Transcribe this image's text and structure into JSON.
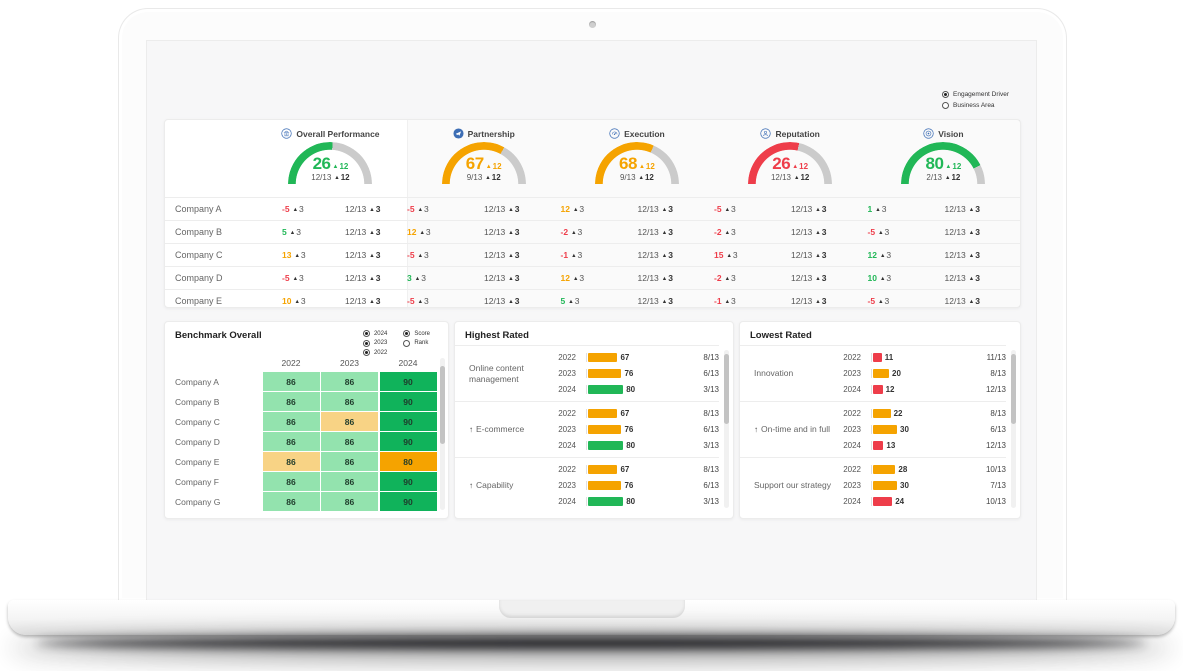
{
  "view_toggle": {
    "options": [
      {
        "label": "Engagement Driver",
        "selected": true
      },
      {
        "label": "Business Area",
        "selected": false
      }
    ]
  },
  "colors": {
    "green": "#21b757",
    "orange": "#f5a300",
    "red": "#ee3d4a",
    "track": "#cbcbcb",
    "icon_blue": "#3d6eb5",
    "light_green": "#93e3ae",
    "dark_green": "#10b35b",
    "light_orange": "#f8d385",
    "dark_orange": "#f5a300"
  },
  "kpi_sections": [
    {
      "title": "Overall Performance",
      "icon": "bank-icon",
      "value": 26,
      "delta": 12,
      "rank": "12/13",
      "rank_delta": 12,
      "tone": "green",
      "fill_pct": 52
    },
    {
      "title": "Partnership",
      "icon": "paper-plane-icon",
      "value": 67,
      "delta": 12,
      "rank": "9/13",
      "rank_delta": 12,
      "tone": "orange",
      "fill_pct": 66
    },
    {
      "title": "Execution",
      "icon": "gauge-icon",
      "value": 68,
      "delta": 12,
      "rank": "9/13",
      "rank_delta": 12,
      "tone": "orange",
      "fill_pct": 63
    },
    {
      "title": "Reputation",
      "icon": "person-icon",
      "value": 26,
      "delta": 12,
      "rank": "12/13",
      "rank_delta": 12,
      "tone": "red",
      "fill_pct": 57
    },
    {
      "title": "Vision",
      "icon": "eye-icon",
      "value": 80,
      "delta": 12,
      "rank": "2/13",
      "rank_delta": 12,
      "tone": "green",
      "fill_pct": 85
    }
  ],
  "company_table": {
    "cell_delta": 3,
    "cell_rank": "12/13",
    "cell_rank_delta": 3,
    "rows": [
      {
        "name": "Company A",
        "cells": [
          {
            "v": -5,
            "tone": "red"
          },
          {
            "v": -5,
            "tone": "red"
          },
          {
            "v": 12,
            "tone": "orange"
          },
          {
            "v": -5,
            "tone": "red"
          },
          {
            "v": 1,
            "tone": "green"
          }
        ]
      },
      {
        "name": "Company B",
        "cells": [
          {
            "v": 5,
            "tone": "green"
          },
          {
            "v": 12,
            "tone": "orange"
          },
          {
            "v": -2,
            "tone": "red"
          },
          {
            "v": -2,
            "tone": "red"
          },
          {
            "v": -5,
            "tone": "red"
          }
        ]
      },
      {
        "name": "Company C",
        "cells": [
          {
            "v": 13,
            "tone": "orange"
          },
          {
            "v": -5,
            "tone": "red"
          },
          {
            "v": -1,
            "tone": "red"
          },
          {
            "v": 15,
            "tone": "red"
          },
          {
            "v": 12,
            "tone": "green"
          }
        ]
      },
      {
        "name": "Company D",
        "cells": [
          {
            "v": -5,
            "tone": "red"
          },
          {
            "v": 3,
            "tone": "green"
          },
          {
            "v": 12,
            "tone": "orange"
          },
          {
            "v": -2,
            "tone": "red"
          },
          {
            "v": 10,
            "tone": "green"
          }
        ]
      },
      {
        "name": "Company E",
        "cells": [
          {
            "v": 10,
            "tone": "orange"
          },
          {
            "v": -5,
            "tone": "red"
          },
          {
            "v": 5,
            "tone": "green"
          },
          {
            "v": -1,
            "tone": "red"
          },
          {
            "v": -5,
            "tone": "red"
          }
        ]
      }
    ]
  },
  "benchmark": {
    "title": "Benchmark Overall",
    "year_filters": [
      {
        "label": "2024",
        "selected": true
      },
      {
        "label": "2023",
        "selected": true
      },
      {
        "label": "2022",
        "selected": true
      }
    ],
    "mode_filters": [
      {
        "label": "Score",
        "selected": true
      },
      {
        "label": "Rank",
        "selected": false
      }
    ],
    "years": [
      "2022",
      "2023",
      "2024"
    ],
    "rows": [
      {
        "name": "Company A",
        "cells": [
          {
            "v": 86,
            "tone": "light_green"
          },
          {
            "v": 86,
            "tone": "light_green"
          },
          {
            "v": 90,
            "tone": "dark_green"
          }
        ]
      },
      {
        "name": "Company B",
        "cells": [
          {
            "v": 86,
            "tone": "light_green"
          },
          {
            "v": 86,
            "tone": "light_green"
          },
          {
            "v": 90,
            "tone": "dark_green"
          }
        ]
      },
      {
        "name": "Company C",
        "cells": [
          {
            "v": 86,
            "tone": "light_green"
          },
          {
            "v": 86,
            "tone": "light_orange"
          },
          {
            "v": 90,
            "tone": "dark_green"
          }
        ]
      },
      {
        "name": "Company D",
        "cells": [
          {
            "v": 86,
            "tone": "light_green"
          },
          {
            "v": 86,
            "tone": "light_green"
          },
          {
            "v": 90,
            "tone": "dark_green"
          }
        ]
      },
      {
        "name": "Company E",
        "cells": [
          {
            "v": 86,
            "tone": "light_orange"
          },
          {
            "v": 86,
            "tone": "light_green"
          },
          {
            "v": 80,
            "tone": "dark_orange"
          }
        ]
      },
      {
        "name": "Company F",
        "cells": [
          {
            "v": 86,
            "tone": "light_green"
          },
          {
            "v": 86,
            "tone": "light_green"
          },
          {
            "v": 90,
            "tone": "dark_green"
          }
        ]
      },
      {
        "name": "Company G",
        "cells": [
          {
            "v": 86,
            "tone": "light_green"
          },
          {
            "v": 86,
            "tone": "light_green"
          },
          {
            "v": 90,
            "tone": "dark_green"
          }
        ]
      }
    ]
  },
  "highest_rated": {
    "title": "Highest Rated",
    "bar_scale": 0.44,
    "items": [
      {
        "label": "Online content management",
        "trend_up": false,
        "rows": [
          {
            "year": "2022",
            "value": 67,
            "tone": "orange",
            "rank": "8/13"
          },
          {
            "year": "2023",
            "value": 76,
            "tone": "orange",
            "rank": "6/13"
          },
          {
            "year": "2024",
            "value": 80,
            "tone": "green",
            "rank": "3/13"
          }
        ]
      },
      {
        "label": "E-commerce",
        "trend_up": true,
        "rows": [
          {
            "year": "2022",
            "value": 67,
            "tone": "orange",
            "rank": "8/13"
          },
          {
            "year": "2023",
            "value": 76,
            "tone": "orange",
            "rank": "6/13"
          },
          {
            "year": "2024",
            "value": 80,
            "tone": "green",
            "rank": "3/13"
          }
        ]
      },
      {
        "label": "Capability",
        "trend_up": true,
        "rows": [
          {
            "year": "2022",
            "value": 67,
            "tone": "orange",
            "rank": "8/13"
          },
          {
            "year": "2023",
            "value": 76,
            "tone": "orange",
            "rank": "6/13"
          },
          {
            "year": "2024",
            "value": 80,
            "tone": "green",
            "rank": "3/13"
          }
        ]
      }
    ]
  },
  "lowest_rated": {
    "title": "Lowest Rated",
    "bar_scale": 0.8,
    "items": [
      {
        "label": "Innovation",
        "trend_up": false,
        "rows": [
          {
            "year": "2022",
            "value": 11,
            "tone": "red",
            "rank": "11/13"
          },
          {
            "year": "2023",
            "value": 20,
            "tone": "orange",
            "rank": "8/13"
          },
          {
            "year": "2024",
            "value": 12,
            "tone": "red",
            "rank": "12/13"
          }
        ]
      },
      {
        "label": "On-time and in full",
        "trend_up": true,
        "rows": [
          {
            "year": "2022",
            "value": 22,
            "tone": "orange",
            "rank": "8/13"
          },
          {
            "year": "2023",
            "value": 30,
            "tone": "orange",
            "rank": "6/13"
          },
          {
            "year": "2024",
            "value": 13,
            "tone": "red",
            "rank": "12/13"
          }
        ]
      },
      {
        "label": "Support our strategy",
        "trend_up": false,
        "rows": [
          {
            "year": "2022",
            "value": 28,
            "tone": "orange",
            "rank": "10/13"
          },
          {
            "year": "2023",
            "value": 30,
            "tone": "orange",
            "rank": "7/13"
          },
          {
            "year": "2024",
            "value": 24,
            "tone": "red",
            "rank": "10/13"
          }
        ]
      }
    ]
  }
}
